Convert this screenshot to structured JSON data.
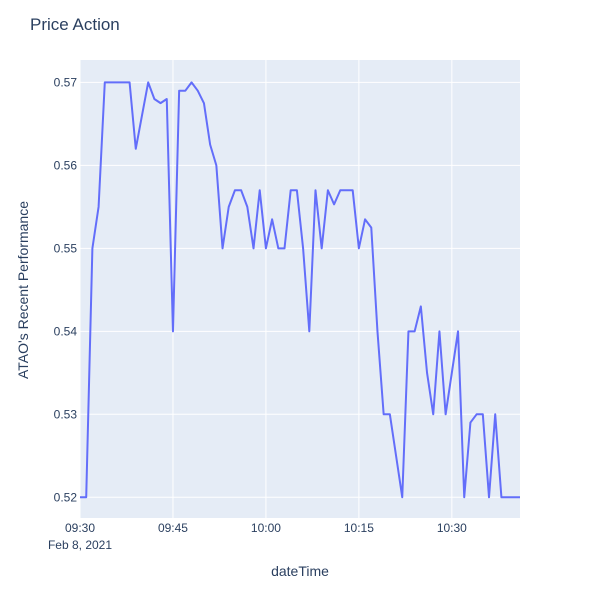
{
  "chart_data": {
    "type": "line",
    "title": "Price Action",
    "xlabel": "dateTime",
    "ylabel": "ATAO's Recent Performance",
    "x_date_label": "Feb 8, 2021",
    "xlim": [
      "09:30",
      "10:41"
    ],
    "ylim": [
      0.5175,
      0.5727
    ],
    "x_ticks": [
      "09:30",
      "09:45",
      "10:00",
      "10:15",
      "10:30"
    ],
    "y_ticks": [
      "0.52",
      "0.53",
      "0.54",
      "0.55",
      "0.56",
      "0.57"
    ],
    "grid": true,
    "colors": {
      "line": "#636efa",
      "plot_bg": "#e5ecf6",
      "grid": "#ffffff",
      "text": "#2a3f5f"
    },
    "series": [
      {
        "x": [
          "09:30",
          "09:31",
          "09:32",
          "09:33",
          "09:34",
          "09:35",
          "09:36",
          "09:37",
          "09:38",
          "09:39",
          "09:40",
          "09:41",
          "09:42",
          "09:43",
          "09:44",
          "09:45",
          "09:46",
          "09:47",
          "09:48",
          "09:49",
          "09:50",
          "09:51",
          "09:52",
          "09:53",
          "09:54",
          "09:55",
          "09:56",
          "09:57",
          "09:58",
          "09:59",
          "10:00",
          "10:01",
          "10:02",
          "10:03",
          "10:04",
          "10:05",
          "10:06",
          "10:07",
          "10:08",
          "10:09",
          "10:10",
          "10:11",
          "10:12",
          "10:13",
          "10:14",
          "10:15",
          "10:16",
          "10:17",
          "10:18",
          "10:19",
          "10:20",
          "10:21",
          "10:22",
          "10:23",
          "10:24",
          "10:25",
          "10:26",
          "10:27",
          "10:28",
          "10:29",
          "10:30",
          "10:31",
          "10:32",
          "10:33",
          "10:34",
          "10:35",
          "10:36",
          "10:37",
          "10:38",
          "10:39",
          "10:40",
          "10:41"
        ],
        "values": [
          0.52,
          0.52,
          0.55,
          0.555,
          0.57,
          0.57,
          0.57,
          0.57,
          0.57,
          0.562,
          0.566,
          0.57,
          0.568,
          0.5675,
          0.568,
          0.54,
          0.569,
          0.569,
          0.57,
          0.569,
          0.5675,
          0.5625,
          0.56,
          0.55,
          0.555,
          0.557,
          0.557,
          0.555,
          0.55,
          0.557,
          0.55,
          0.5535,
          0.55,
          0.55,
          0.557,
          0.557,
          0.55,
          0.54,
          0.557,
          0.55,
          0.557,
          0.5553,
          0.557,
          0.557,
          0.557,
          0.55,
          0.5535,
          0.5525,
          0.54,
          0.53,
          0.53,
          0.525,
          0.52,
          0.54,
          0.54,
          0.543,
          0.535,
          0.53,
          0.54,
          0.53,
          0.535,
          0.54,
          0.52,
          0.529,
          0.53,
          0.53,
          0.52,
          0.53,
          0.52,
          0.52,
          0.52,
          0.52
        ]
      }
    ]
  }
}
